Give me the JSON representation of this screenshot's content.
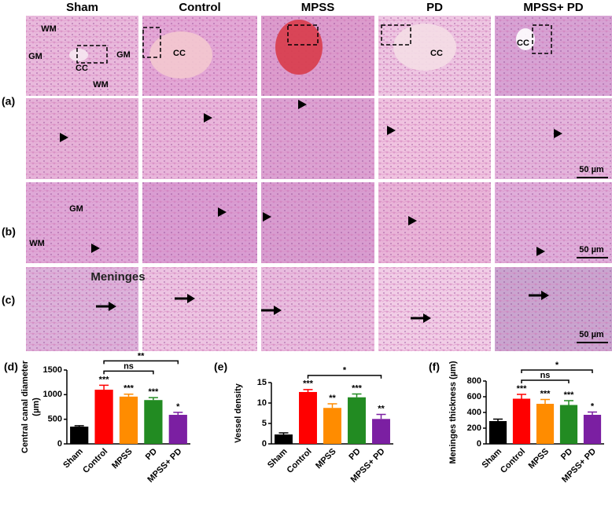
{
  "figure": {
    "columns": [
      "Sham",
      "Control",
      "MPSS",
      "PD",
      "MPSS+ PD"
    ],
    "row_labels": [
      "(a)",
      "(b)",
      "(c)"
    ],
    "overview_labels": [
      [
        "WM",
        "GM",
        "GM",
        "CC",
        "WM"
      ],
      [
        "CC"
      ],
      [],
      [
        "CC"
      ],
      [
        "CC"
      ]
    ],
    "row_b_labels": [
      "GM",
      "WM"
    ],
    "row_c_label": "Meninges",
    "scale_bar": "50 µm"
  },
  "chart_data": [
    {
      "type": "bar",
      "panel": "(d)",
      "ylabel": [
        "Central canal diameter",
        "(µm)"
      ],
      "categories": [
        "Sham",
        "Control",
        "MPSS",
        "PD",
        "MPSS+ PD"
      ],
      "values": [
        350,
        1100,
        960,
        890,
        590
      ],
      "errors": [
        20,
        90,
        50,
        50,
        50
      ],
      "colors": [
        "#000000",
        "#ff0000",
        "#ff8c00",
        "#228b22",
        "#7b1fa2"
      ],
      "significance": [
        null,
        "***",
        "***",
        "***",
        "*"
      ],
      "comparisons": [
        {
          "label": "ns",
          "categories": [
            "Control",
            "PD"
          ]
        },
        {
          "label": "**",
          "categories": [
            "Control",
            "MPSS+ PD"
          ]
        }
      ],
      "ylim": [
        0,
        1500
      ],
      "yticks": [
        0,
        500,
        1000,
        1500
      ]
    },
    {
      "type": "bar",
      "panel": "(e)",
      "ylabel": [
        "Vessel density"
      ],
      "categories": [
        "Sham",
        "Control",
        "MPSS",
        "PD",
        "MPSS+ PD"
      ],
      "values": [
        2.3,
        12.7,
        8.8,
        11.4,
        6.1
      ],
      "errors": [
        0.4,
        0.6,
        1.0,
        0.8,
        1.1
      ],
      "colors": [
        "#000000",
        "#ff0000",
        "#ff8c00",
        "#228b22",
        "#7b1fa2"
      ],
      "significance": [
        null,
        "***",
        "**",
        "***",
        "**"
      ],
      "comparisons": [
        {
          "label": "*",
          "categories": [
            "Control",
            "MPSS+ PD"
          ]
        }
      ],
      "ylim": [
        0,
        15
      ],
      "yticks": [
        0,
        5,
        10,
        15
      ]
    },
    {
      "type": "bar",
      "panel": "(f)",
      "ylabel": [
        "Meninges thickness (µm)"
      ],
      "categories": [
        "Sham",
        "Control",
        "MPSS",
        "PD",
        "MPSS+ PD"
      ],
      "values": [
        290,
        575,
        510,
        495,
        370
      ],
      "errors": [
        25,
        55,
        55,
        55,
        35
      ],
      "colors": [
        "#000000",
        "#ff0000",
        "#ff8c00",
        "#228b22",
        "#7b1fa2"
      ],
      "significance": [
        null,
        "***",
        "***",
        "***",
        "*"
      ],
      "comparisons": [
        {
          "label": "ns",
          "categories": [
            "Control",
            "PD"
          ]
        },
        {
          "label": "*",
          "categories": [
            "Control",
            "MPSS+ PD"
          ]
        }
      ],
      "ylim": [
        0,
        800
      ],
      "yticks": [
        0,
        200,
        400,
        600,
        800
      ]
    }
  ]
}
